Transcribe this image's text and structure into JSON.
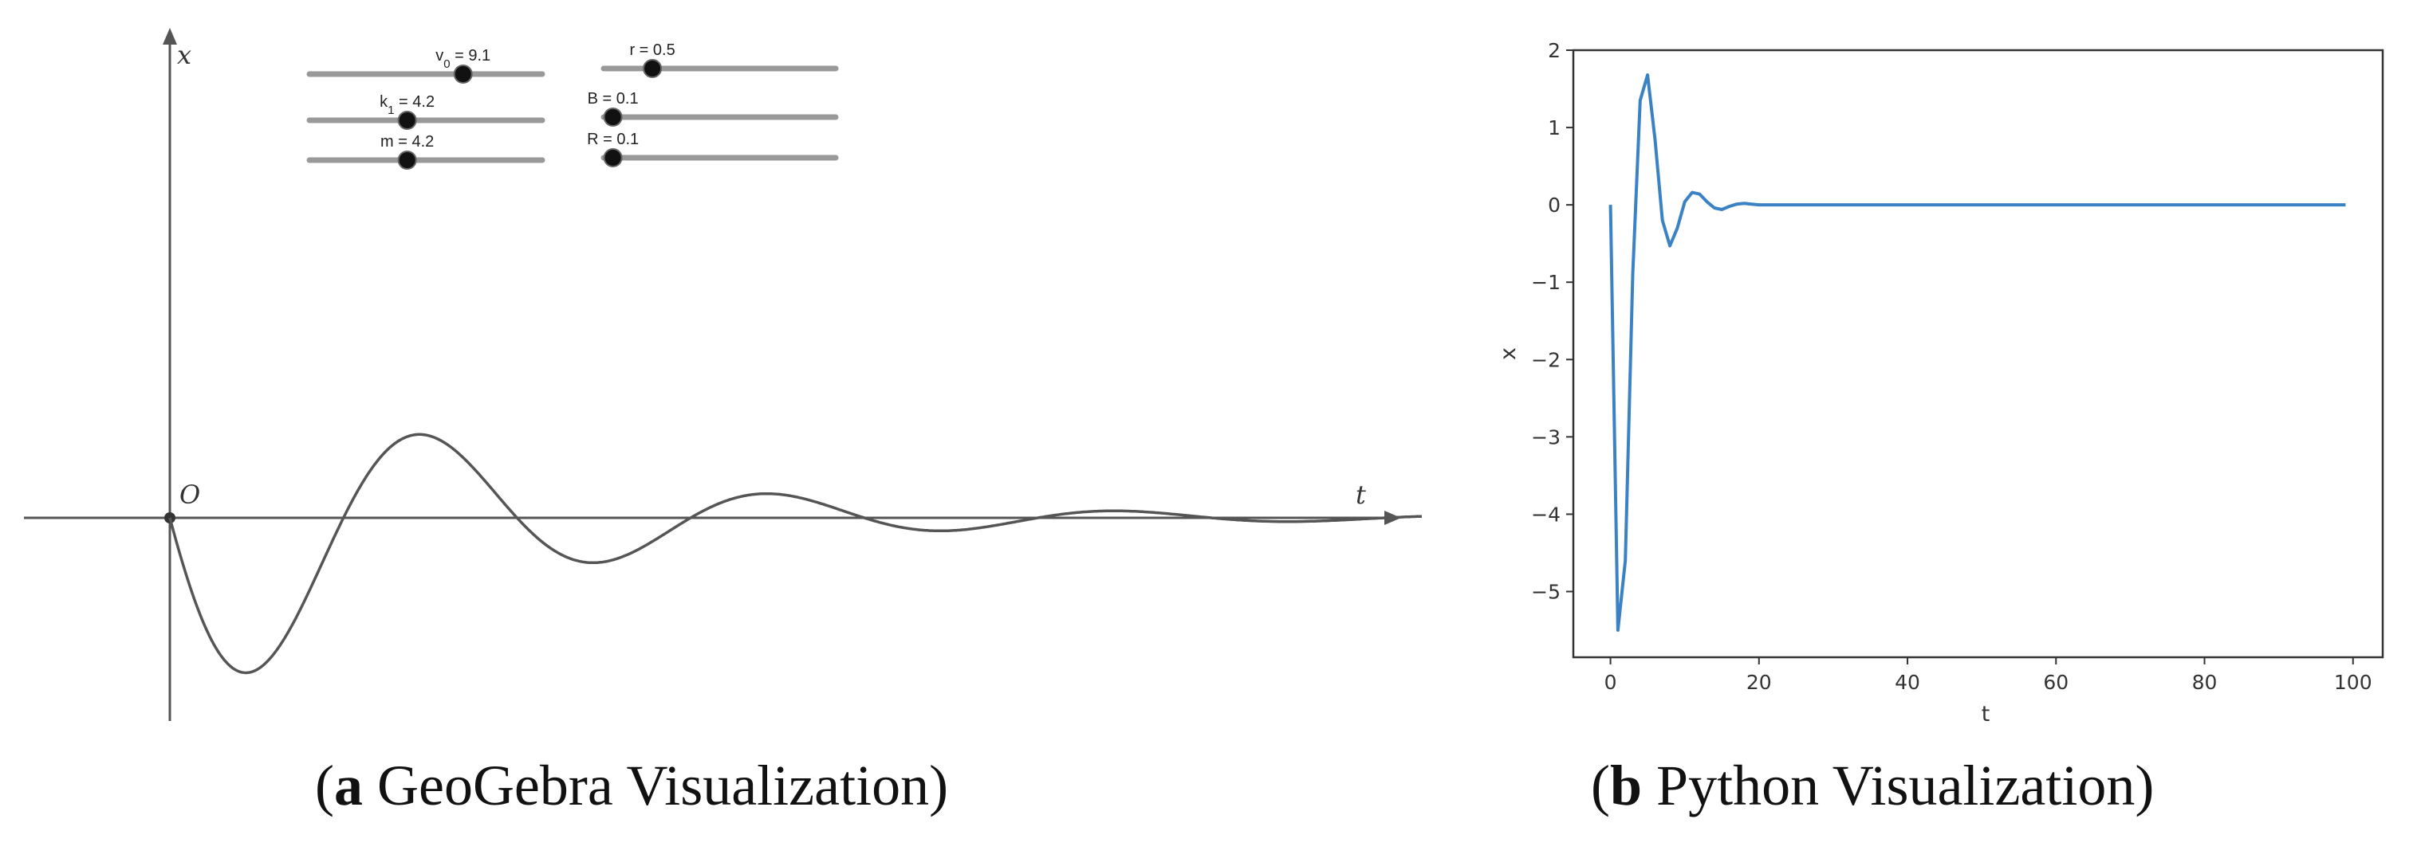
{
  "captions": {
    "a_letter": "a",
    "a_text": " GeoGebra Visualization",
    "b_letter": "b",
    "b_text": " Python Visualization"
  },
  "geogebra": {
    "x_axis_letter": "t",
    "y_axis_letter": "x",
    "origin_letter": "O",
    "sliders": [
      {
        "id": "v0",
        "label": "v",
        "sub": "0",
        "value_text": " = 9.1",
        "value": 9.1,
        "fraction": 0.66
      },
      {
        "id": "k1",
        "label": "k",
        "sub": "1",
        "value_text": " = 4.2",
        "value": 4.2,
        "fraction": 0.42
      },
      {
        "id": "m",
        "label": "m = 4.2",
        "value": 4.2,
        "fraction": 0.42
      },
      {
        "id": "r",
        "label": "r = 0.5",
        "value": 0.5,
        "fraction": 0.21
      },
      {
        "id": "B",
        "label": "B = 0.1",
        "value": 0.1,
        "fraction": 0.04
      },
      {
        "id": "R",
        "label": "R = 0.1",
        "value": 0.1,
        "fraction": 0.04
      }
    ],
    "curve_color": "#555555",
    "axis_color": "#555555"
  },
  "chart_data": {
    "type": "line",
    "title": "",
    "xlabel": "t",
    "ylabel": "x",
    "xlim": [
      -5,
      104
    ],
    "ylim": [
      -5.85,
      2.0
    ],
    "xticks": [
      0,
      20,
      40,
      60,
      80,
      100
    ],
    "yticks": [
      -5,
      -4,
      -3,
      -2,
      -1,
      0,
      1,
      2
    ],
    "xtick_labels": [
      "0",
      "20",
      "40",
      "60",
      "80",
      "100"
    ],
    "ytick_labels": [
      "−5",
      "−4",
      "−3",
      "−2",
      "−1",
      "0",
      "1",
      "2"
    ],
    "grid": false,
    "series": [
      {
        "color": "#3b82c4",
        "x": [
          0,
          1,
          2,
          3,
          4,
          5,
          6,
          7,
          8,
          9,
          10,
          11,
          12,
          13,
          14,
          15,
          16,
          17,
          18,
          19,
          20,
          22,
          25,
          30,
          40,
          50,
          60,
          70,
          80,
          90,
          99
        ],
        "y": [
          0,
          -5.5,
          -4.6,
          -0.9,
          1.35,
          1.68,
          0.85,
          -0.2,
          -0.53,
          -0.3,
          0.04,
          0.16,
          0.14,
          0.04,
          -0.04,
          -0.06,
          -0.02,
          0.01,
          0.02,
          0.01,
          0.0,
          0.0,
          0.0,
          0.0,
          0.0,
          0.0,
          0.0,
          0.0,
          0.0,
          0.0,
          0.0
        ]
      }
    ]
  }
}
